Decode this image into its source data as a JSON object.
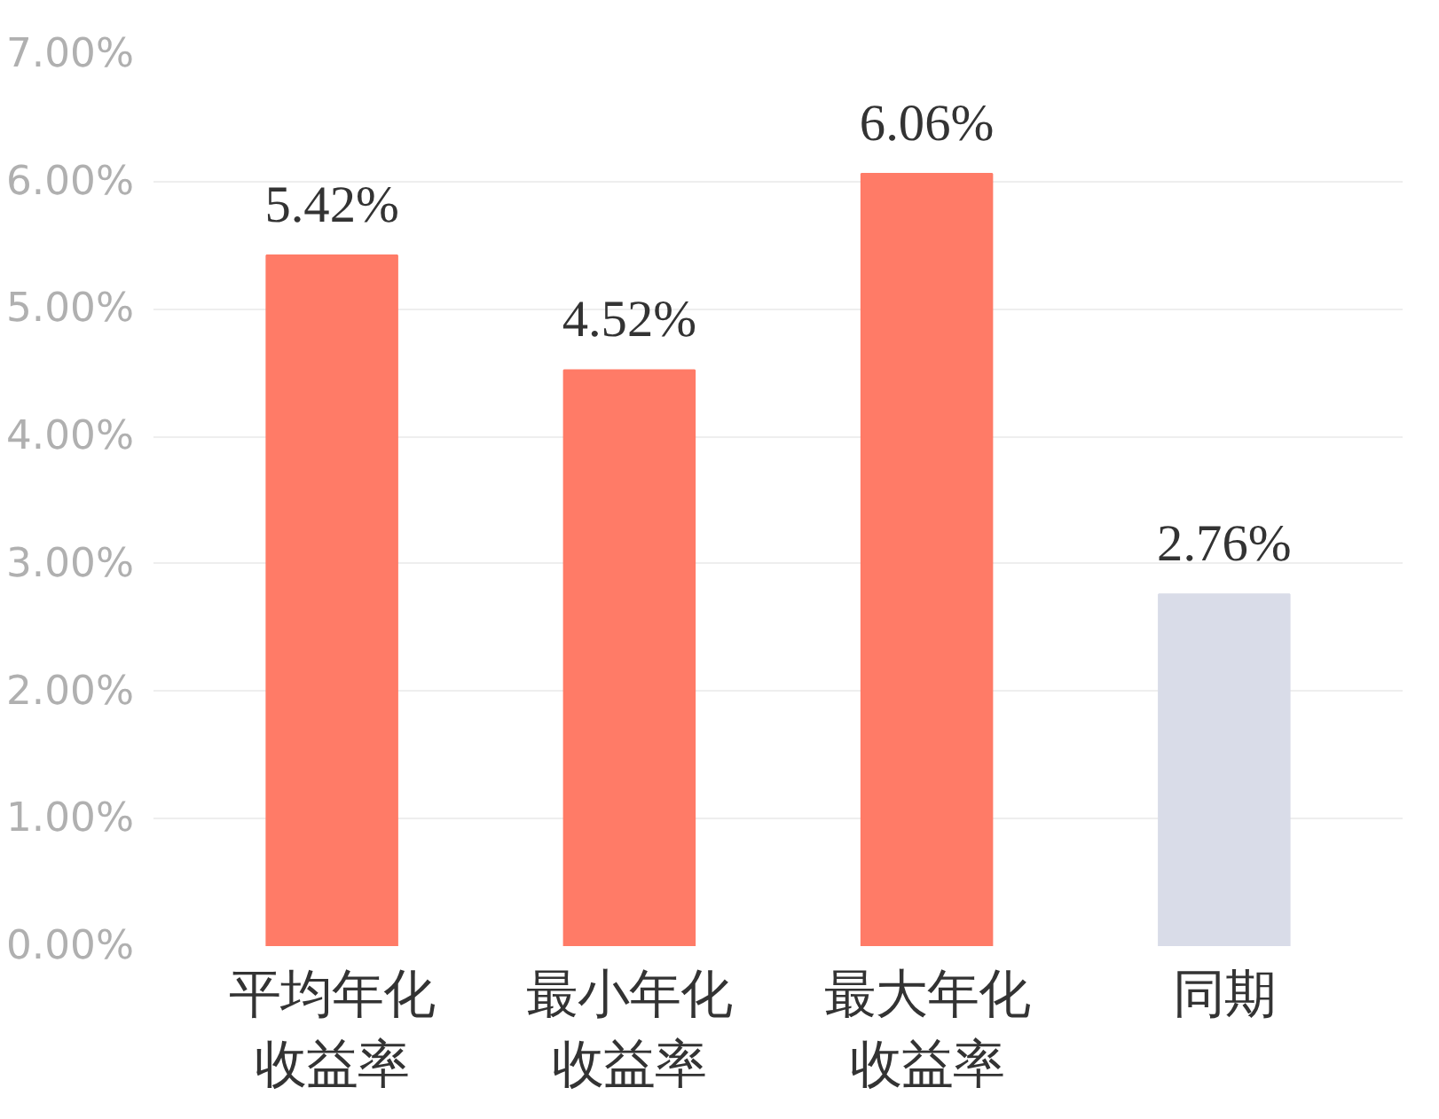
{
  "chart_data": {
    "type": "bar",
    "categories": [
      "平均年化收益率",
      "最小年化收益率",
      "最大年化收益率",
      "同期"
    ],
    "value_labels": [
      "5.42%",
      "4.52%",
      "6.06%",
      "2.76%"
    ],
    "values": [
      5.42,
      4.52,
      6.06,
      2.76
    ],
    "colors": [
      "#ff7b67",
      "#ff7b67",
      "#ff7b67",
      "#d9dce8"
    ],
    "data_labels": true,
    "ylim": [
      0,
      7
    ],
    "yticks": [
      {
        "value": 0,
        "label": "0.00%"
      },
      {
        "value": 1,
        "label": "1.00%"
      },
      {
        "value": 2,
        "label": "2.00%"
      },
      {
        "value": 3,
        "label": "3.00%"
      },
      {
        "value": 4,
        "label": "4.00%"
      },
      {
        "value": 5,
        "label": "5.00%"
      },
      {
        "value": 6,
        "label": "6.00%"
      },
      {
        "value": 7,
        "label": "7.00%"
      }
    ],
    "grid": "y"
  }
}
